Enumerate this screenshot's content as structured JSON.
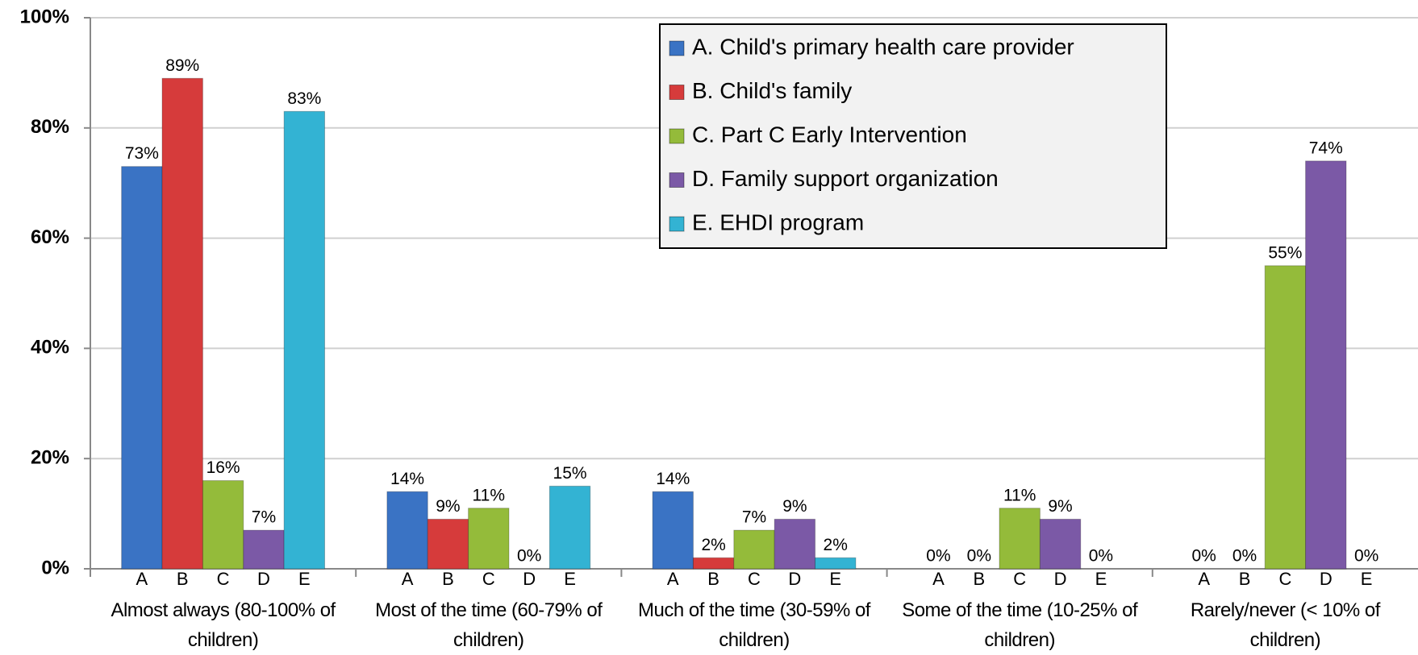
{
  "chart_data": {
    "type": "bar",
    "categories": [
      "Almost always (80-100% of children)",
      "Most of the time (60-79% of children)",
      "Much of the time (30-59% of children)",
      "Some of the time (10-25% of children)",
      "Rarely/never (< 10% of children)"
    ],
    "series": [
      {
        "name": "A. Child's primary health care provider",
        "short": "A",
        "color": "#3a73c4",
        "values": [
          73,
          14,
          14,
          0,
          0
        ],
        "value_labels": [
          "73%",
          "14%",
          "14%",
          "0%",
          "0%"
        ]
      },
      {
        "name": "B. Child's family",
        "short": "B",
        "color": "#d63b3b",
        "values": [
          89,
          9,
          2,
          0,
          0
        ],
        "value_labels": [
          "89%",
          "9%",
          "2%",
          "0%",
          "0%"
        ]
      },
      {
        "name": "C. Part C Early Intervention",
        "short": "C",
        "color": "#94bb3a",
        "values": [
          16,
          11,
          7,
          11,
          55
        ],
        "value_labels": [
          "16%",
          "11%",
          "7%",
          "11%",
          "55%"
        ]
      },
      {
        "name": "D. Family support organization",
        "short": "D",
        "color": "#7b59a6",
        "values": [
          7,
          0,
          9,
          9,
          74
        ],
        "value_labels": [
          "7%",
          "0%",
          "9%",
          "9%",
          "74%"
        ]
      },
      {
        "name": "E. EHDI program",
        "short": "E",
        "color": "#33b3d3",
        "values": [
          83,
          15,
          2,
          0,
          0
        ],
        "value_labels": [
          "83%",
          "15%",
          "2%",
          "0%",
          "0%"
        ]
      }
    ],
    "ylim": [
      0,
      100
    ],
    "yticks": [
      {
        "value": 0,
        "label": "0%"
      },
      {
        "value": 20,
        "label": "20%"
      },
      {
        "value": 40,
        "label": "40%"
      },
      {
        "value": 60,
        "label": "60%"
      },
      {
        "value": 80,
        "label": "80%"
      },
      {
        "value": 100,
        "label": "100%"
      }
    ],
    "grid": true,
    "legend": "top-right"
  }
}
